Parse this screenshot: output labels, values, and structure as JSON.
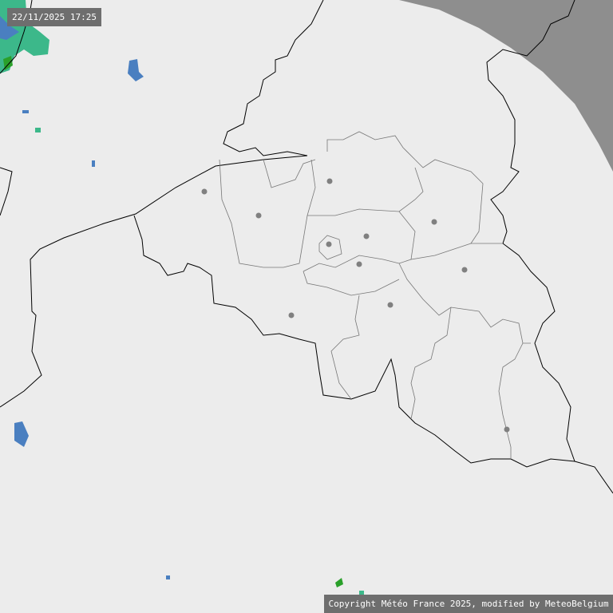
{
  "timestamp": "22/11/2025 17:25",
  "copyright": "Copyright Météo France 2025, modified by MeteoBelgium",
  "colors": {
    "background": "#ececec",
    "out_of_range": "#8e8e8e",
    "rain_light": "#4a7fc0",
    "rain_moderate": "#3cb88a",
    "rain_heavy": "#2aa02a",
    "border": "#000000",
    "province_border": "#777777",
    "city_marker": "#808080"
  }
}
